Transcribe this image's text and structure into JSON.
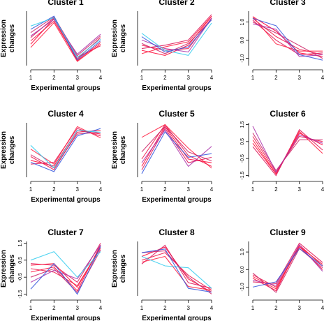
{
  "chart_data": [
    {
      "type": "line",
      "title": "Cluster 1",
      "xlabel": "Experimental groups",
      "ylabel": "Expression changes",
      "x": [
        1,
        2,
        3,
        4
      ],
      "xticks": [
        "1",
        "2",
        "3",
        "4"
      ],
      "yticks": [],
      "ylim": [
        -1.6,
        1.7
      ],
      "grid": false,
      "series": [
        {
          "values": [
            -0.3,
            1.25,
            -1.3,
            -0.2
          ],
          "color": "#ff0033"
        },
        {
          "values": [
            -0.1,
            1.1,
            -1.2,
            0.1
          ],
          "color": "#ee1144"
        },
        {
          "values": [
            0.1,
            1.3,
            -1.1,
            -0.4
          ],
          "color": "#dd1155"
        },
        {
          "values": [
            0.4,
            1.35,
            -1.0,
            0.2
          ],
          "color": "#cc2266"
        },
        {
          "values": [
            -0.5,
            1.0,
            -1.35,
            -0.3
          ],
          "color": "#ff1a3d"
        },
        {
          "values": [
            0.2,
            1.2,
            -0.9,
            0.3
          ],
          "color": "#aa33aa"
        },
        {
          "values": [
            0.6,
            1.4,
            -1.25,
            -0.1
          ],
          "color": "#3355dd"
        },
        {
          "values": [
            0.8,
            1.3,
            -1.1,
            0.0
          ],
          "color": "#33ccee"
        }
      ]
    },
    {
      "type": "line",
      "title": "Cluster 2",
      "xlabel": "Experimental groups",
      "ylabel": "Expression changes",
      "x": [
        1,
        2,
        3,
        4
      ],
      "xticks": [
        "1",
        "2",
        "3",
        "4"
      ],
      "yticks": [],
      "ylim": [
        -1.5,
        1.7
      ],
      "grid": false,
      "series": [
        {
          "values": [
            -0.6,
            -0.9,
            -0.3,
            1.4
          ],
          "color": "#ff0033"
        },
        {
          "values": [
            -0.3,
            -0.6,
            -0.5,
            1.3
          ],
          "color": "#ee1144"
        },
        {
          "values": [
            -0.5,
            -0.3,
            0.0,
            1.5
          ],
          "color": "#dd1155"
        },
        {
          "values": [
            -0.2,
            -0.8,
            -0.2,
            1.2
          ],
          "color": "#cc2266"
        },
        {
          "values": [
            0.0,
            -0.5,
            -0.7,
            1.3
          ],
          "color": "#aa33aa"
        },
        {
          "values": [
            -0.8,
            -0.4,
            -0.1,
            1.4
          ],
          "color": "#ff1a3d"
        },
        {
          "values": [
            0.4,
            -0.6,
            -0.9,
            1.0
          ],
          "color": "#33ccee"
        },
        {
          "values": [
            0.2,
            -0.7,
            -0.4,
            1.2
          ],
          "color": "#3355dd"
        }
      ]
    },
    {
      "type": "line",
      "title": "Cluster 3",
      "xlabel": "",
      "ylabel": "",
      "x": [
        1,
        2,
        3,
        4
      ],
      "xticks": [
        "1",
        "2",
        "3",
        "4"
      ],
      "yticks": [
        "-1.0",
        "0.0",
        "1.0"
      ],
      "ylim": [
        -1.4,
        1.6
      ],
      "grid": false,
      "series": [
        {
          "values": [
            1.3,
            0.5,
            -0.7,
            -0.9
          ],
          "color": "#ff0033"
        },
        {
          "values": [
            1.2,
            0.2,
            -0.5,
            -0.8
          ],
          "color": "#ee1144"
        },
        {
          "values": [
            1.1,
            0.0,
            -0.8,
            -0.7
          ],
          "color": "#dd1155"
        },
        {
          "values": [
            1.0,
            0.4,
            -0.3,
            -1.0
          ],
          "color": "#cc2266"
        },
        {
          "values": [
            1.3,
            -0.2,
            -0.6,
            -0.6
          ],
          "color": "#ff1a3d"
        },
        {
          "values": [
            0.9,
            0.6,
            -0.9,
            -0.8
          ],
          "color": "#aa33aa"
        },
        {
          "values": [
            1.2,
            0.8,
            -0.8,
            -1.1
          ],
          "color": "#3355dd"
        }
      ]
    },
    {
      "type": "line",
      "title": "Cluster 4",
      "xlabel": "Experimental groups",
      "ylabel": "Expression changes",
      "x": [
        1,
        2,
        3,
        4
      ],
      "xticks": [
        "1",
        "2",
        "3",
        "4"
      ],
      "yticks": [],
      "ylim": [
        -1.5,
        1.4
      ],
      "grid": false,
      "series": [
        {
          "values": [
            -0.6,
            -0.9,
            1.0,
            0.8
          ],
          "color": "#ff0033"
        },
        {
          "values": [
            -0.4,
            -1.1,
            0.9,
            1.0
          ],
          "color": "#ee1144"
        },
        {
          "values": [
            -0.8,
            -0.7,
            1.1,
            0.7
          ],
          "color": "#dd1155"
        },
        {
          "values": [
            -0.3,
            -1.0,
            0.8,
            0.9
          ],
          "color": "#cc2266"
        },
        {
          "values": [
            0.0,
            -0.8,
            1.2,
            0.6
          ],
          "color": "#ff1a3d"
        },
        {
          "values": [
            -0.7,
            -1.2,
            0.7,
            1.1
          ],
          "color": "#3355dd"
        },
        {
          "values": [
            0.2,
            -1.0,
            1.0,
            0.9
          ],
          "color": "#33ccee"
        }
      ]
    },
    {
      "type": "line",
      "title": "Cluster 5",
      "xlabel": "Experimental groups",
      "ylabel": "Expression changes",
      "x": [
        1,
        2,
        3,
        4
      ],
      "xticks": [
        "1",
        "2",
        "3",
        "4"
      ],
      "yticks": [],
      "ylim": [
        -1.4,
        1.6
      ],
      "grid": false,
      "series": [
        {
          "values": [
            -0.8,
            1.4,
            -0.4,
            -0.6
          ],
          "color": "#ff0033"
        },
        {
          "values": [
            -0.4,
            1.5,
            -0.2,
            -0.8
          ],
          "color": "#ee1144"
        },
        {
          "values": [
            -1.0,
            1.3,
            -0.6,
            -0.3
          ],
          "color": "#dd1155"
        },
        {
          "values": [
            0.0,
            1.4,
            0.0,
            -0.5
          ],
          "color": "#cc2266"
        },
        {
          "values": [
            -0.6,
            1.2,
            -0.8,
            0.3
          ],
          "color": "#aa33aa"
        },
        {
          "values": [
            0.8,
            1.5,
            0.2,
            -0.9
          ],
          "color": "#ff1a3d"
        },
        {
          "values": [
            -1.2,
            1.1,
            -0.3,
            -0.1
          ],
          "color": "#3355dd"
        }
      ]
    },
    {
      "type": "line",
      "title": "Cluster 6",
      "xlabel": "",
      "ylabel": "",
      "x": [
        1,
        2,
        3,
        4
      ],
      "xticks": [
        "1",
        "2",
        "3",
        "4"
      ],
      "yticks": [
        "-1.5",
        "-0.5",
        "0.5",
        "1.5"
      ],
      "ylim": [
        -1.6,
        1.6
      ],
      "grid": false,
      "series": [
        {
          "values": [
            0.4,
            -1.4,
            1.0,
            0.3
          ],
          "color": "#ff0033"
        },
        {
          "values": [
            0.8,
            -1.3,
            0.8,
            0.5
          ],
          "color": "#ee1144"
        },
        {
          "values": [
            0.2,
            -1.5,
            1.2,
            0.0
          ],
          "color": "#dd1155"
        },
        {
          "values": [
            1.0,
            -1.2,
            0.6,
            0.6
          ],
          "color": "#cc2266"
        },
        {
          "values": [
            0.6,
            -1.4,
            1.1,
            -0.2
          ],
          "color": "#ff1a3d"
        },
        {
          "values": [
            1.4,
            -1.3,
            0.9,
            0.4
          ],
          "color": "#aa33aa"
        }
      ]
    },
    {
      "type": "line",
      "title": "Cluster 7",
      "xlabel": "Experimental groups",
      "ylabel": "Expression changes",
      "x": [
        1,
        2,
        3,
        4
      ],
      "xticks": [
        "1",
        "2",
        "3",
        "4"
      ],
      "yticks": [
        "-1.5",
        "-0.5",
        "0.5",
        "1.5"
      ],
      "ylim": [
        -1.6,
        1.6
      ],
      "grid": false,
      "series": [
        {
          "values": [
            -0.2,
            0.1,
            -1.3,
            1.4
          ],
          "color": "#ff0033"
        },
        {
          "values": [
            0.0,
            -0.2,
            -1.0,
            1.2
          ],
          "color": "#ee1144"
        },
        {
          "values": [
            0.3,
            0.2,
            -0.8,
            1.5
          ],
          "color": "#dd1155"
        },
        {
          "values": [
            -0.5,
            0.0,
            -1.4,
            1.1
          ],
          "color": "#cc2266"
        },
        {
          "values": [
            0.2,
            0.3,
            -1.1,
            1.3
          ],
          "color": "#ff1a3d"
        },
        {
          "values": [
            -0.8,
            -0.1,
            -0.6,
            1.4
          ],
          "color": "#aa33aa"
        },
        {
          "values": [
            0.5,
            1.0,
            -0.5,
            1.0
          ],
          "color": "#33ccee"
        },
        {
          "values": [
            -1.2,
            0.3,
            -1.5,
            1.3
          ],
          "color": "#3355dd"
        }
      ]
    },
    {
      "type": "line",
      "title": "Cluster 8",
      "xlabel": "Experimental groups",
      "ylabel": "Expression changes",
      "x": [
        1,
        2,
        3,
        4
      ],
      "xticks": [
        "1",
        "2",
        "3",
        "4"
      ],
      "yticks": [],
      "ylim": [
        -1.3,
        1.6
      ],
      "grid": false,
      "series": [
        {
          "values": [
            0.8,
            1.3,
            -0.4,
            -1.1
          ],
          "color": "#ff0033"
        },
        {
          "values": [
            0.6,
            1.0,
            -0.2,
            -1.0
          ],
          "color": "#ee1144"
        },
        {
          "values": [
            0.4,
            1.4,
            -0.6,
            -0.9
          ],
          "color": "#dd1155"
        },
        {
          "values": [
            1.0,
            1.1,
            -0.3,
            -1.2
          ],
          "color": "#cc2266"
        },
        {
          "values": [
            0.5,
            0.8,
            -0.8,
            -1.0
          ],
          "color": "#ff1a3d"
        },
        {
          "values": [
            0.8,
            0.3,
            0.2,
            -0.9
          ],
          "color": "#33ccee"
        },
        {
          "values": [
            1.0,
            1.2,
            -0.9,
            -1.1
          ],
          "color": "#3355dd"
        }
      ]
    },
    {
      "type": "line",
      "title": "Cluster 9",
      "xlabel": "",
      "ylabel": "",
      "x": [
        1,
        2,
        3,
        4
      ],
      "xticks": [
        "1",
        "2",
        "3",
        "4"
      ],
      "yticks": [
        "-1.0",
        "0.0",
        "1.0"
      ],
      "ylim": [
        -1.5,
        1.6
      ],
      "grid": false,
      "series": [
        {
          "values": [
            -0.5,
            -1.2,
            1.4,
            0.2
          ],
          "color": "#ff0033"
        },
        {
          "values": [
            -0.3,
            -1.0,
            1.3,
            0.0
          ],
          "color": "#ee1144"
        },
        {
          "values": [
            -0.7,
            -0.8,
            1.5,
            0.4
          ],
          "color": "#dd1155"
        },
        {
          "values": [
            -0.2,
            -1.3,
            1.2,
            0.1
          ],
          "color": "#cc2266"
        },
        {
          "values": [
            -0.6,
            -0.9,
            1.4,
            -0.1
          ],
          "color": "#aa33aa"
        },
        {
          "values": [
            -0.4,
            -1.1,
            1.3,
            0.3
          ],
          "color": "#ff1a3d"
        },
        {
          "values": [
            -1.0,
            -0.7,
            1.2,
            0.2
          ],
          "color": "#3355dd"
        }
      ]
    }
  ]
}
